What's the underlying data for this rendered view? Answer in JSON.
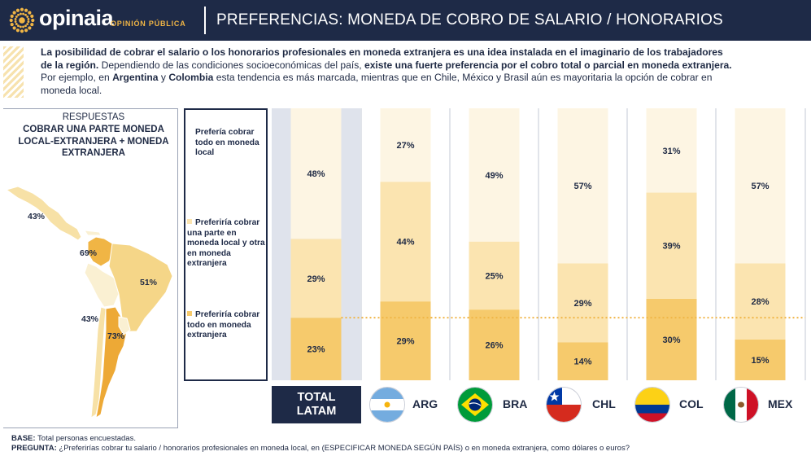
{
  "header": {
    "logo_text": "opinaia",
    "logo_sub": "OPINIÓN PÚBLICA",
    "title": "PREFERENCIAS: MONEDA DE COBRO DE SALARIO / HONORARIOS"
  },
  "intro": {
    "p1_bold": "La posibilidad de cobrar el salario o los honorarios profesionales en moneda extranjera es una idea instalada en el imaginario de los trabajadores de la región.",
    "p2": " Dependiendo de las condiciones socioeconómicas del país, ",
    "p3_bold": "existe una fuerte preferencia por el cobro total o parcial en moneda extranjera.",
    "p4": " Por ejemplo, en ",
    "p5_bold": "Argentina",
    "p6": " y ",
    "p7_bold": "Colombia",
    "p8": " esta tendencia es más marcada, mientras que en Chile, México y Brasil aún es mayoritaria la opción de cobrar en moneda local."
  },
  "map_panel": {
    "resp_label": "RESPUESTAS",
    "title": "COBRAR UNA PARTE MONEDA LOCAL-EXTRANJERA + MONEDA EXTRANJERA",
    "labels": {
      "mex": "43%",
      "col": "69%",
      "bra": "51%",
      "chl": "43%",
      "arg": "73%"
    },
    "colors": {
      "mex": "#f7e1a6",
      "col": "#f0b545",
      "bra": "#f5d688",
      "chl": "#f7e1a6",
      "arg": "#eda936",
      "other": "#faf0d2"
    }
  },
  "legend": {
    "items": [
      {
        "label": "Prefería cobrar todo en moneda local",
        "color": "#fdf5e3"
      },
      {
        "label": "Preferiría cobrar una parte en moneda local y otra en moneda extranjera",
        "color": "#fbe4b0"
      },
      {
        "label": "Preferiría cobrar todo en moneda extranjera",
        "color": "#f6ca6c"
      }
    ]
  },
  "chart_data": {
    "type": "bar",
    "stacked": true,
    "categories": [
      "TOTAL LATAM",
      "ARG",
      "BRA",
      "CHL",
      "COL",
      "MEX"
    ],
    "series": [
      {
        "name": "Preferiría cobrar todo en moneda extranjera",
        "values": [
          23,
          29,
          26,
          14,
          30,
          15
        ],
        "color": "#f6ca6c"
      },
      {
        "name": "Preferiría cobrar una parte en moneda local y otra en moneda extranjera",
        "values": [
          29,
          44,
          25,
          29,
          39,
          28
        ],
        "color": "#fbe4b0"
      },
      {
        "name": "Prefería cobrar todo en moneda local",
        "values": [
          48,
          27,
          49,
          57,
          31,
          57
        ],
        "color": "#fdf5e3"
      }
    ],
    "data_labels": [
      [
        "23%",
        "29%",
        "26%",
        "14%",
        "30%",
        "15%"
      ],
      [
        "29%",
        "44%",
        "25%",
        "29%",
        "39%",
        "28%"
      ],
      [
        "48%",
        "27%",
        "49%",
        "57%",
        "31%",
        "57%"
      ]
    ],
    "reference_line": {
      "value": 23,
      "style": "dotted",
      "color": "#f0b545"
    },
    "ylim": [
      0,
      100
    ]
  },
  "category_labels": {
    "total": "TOTAL\nLATAM",
    "arg": "ARG",
    "bra": "BRA",
    "chl": "CHL",
    "col": "COL",
    "mex": "MEX"
  },
  "footer": {
    "base_label": "BASE:",
    "base_text": " Total personas encuestadas.",
    "q_label": "PREGUNTA:",
    "q_text": " ¿Preferirías cobrar tu salario / honorarios profesionales en moneda local, en (ESPECIFICAR MONEDA SEGÚN PAÍS) o en moneda extranjera, como dólares o euros?"
  }
}
